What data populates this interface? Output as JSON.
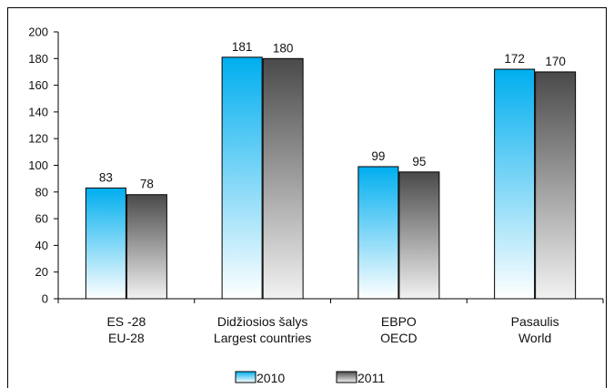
{
  "chart_data": {
    "type": "bar",
    "categories": [
      [
        "ES -28",
        "EU-28"
      ],
      [
        "Didžiosios šalys",
        "Largest countries"
      ],
      [
        "EBPO",
        "OECD"
      ],
      [
        "Pasaulis",
        "World"
      ]
    ],
    "series": [
      {
        "name": "2010",
        "values": [
          83,
          181,
          99,
          172
        ],
        "color_top": "#00aeef",
        "color_bottom": "#ffffff"
      },
      {
        "name": "2011",
        "values": [
          78,
          180,
          95,
          170
        ],
        "color_top": "#4a4a4a",
        "color_bottom": "#f2f2f2"
      }
    ],
    "data_labels": [
      [
        "83",
        "181",
        "99",
        "172"
      ],
      [
        "78",
        "180",
        "95",
        "170"
      ]
    ],
    "y_ticks": [
      "0",
      "20",
      "40",
      "60",
      "80",
      "100",
      "120",
      "140",
      "160",
      "180",
      "200"
    ],
    "ylim": [
      0,
      200
    ],
    "y_step": 20,
    "grid": false,
    "legend_position": "bottom",
    "title": "",
    "xlabel": "",
    "ylabel": ""
  }
}
